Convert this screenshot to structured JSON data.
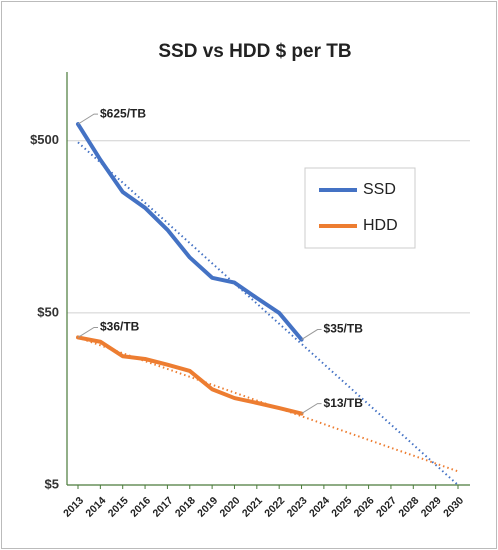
{
  "chart_data": {
    "type": "line",
    "title": "SSD vs HDD $ per TB",
    "categories": [
      "2013",
      "2014",
      "2015",
      "2016",
      "2017",
      "2018",
      "2019",
      "2020",
      "2021",
      "2022",
      "2023",
      "2024",
      "2025",
      "2026",
      "2027",
      "2028",
      "2029",
      "2030"
    ],
    "log_scale": true,
    "grid": true,
    "legend": "upper right",
    "ylim": [
      5,
      1000
    ],
    "yticks": [
      {
        "value": 5,
        "label": "$5"
      },
      {
        "value": 50,
        "label": "$50"
      },
      {
        "value": 500,
        "label": "$500"
      }
    ],
    "series": [
      {
        "name": "SSD",
        "color": "#4472c4",
        "values": [
          625,
          388,
          252,
          204,
          152,
          105,
          80,
          75,
          61,
          50,
          35,
          null,
          null,
          null,
          null,
          null,
          null,
          null
        ],
        "value_labels": [
          "$625/TB",
          null,
          null,
          null,
          null,
          null,
          null,
          null,
          null,
          null,
          "$35/TB",
          null,
          null,
          null,
          null,
          null,
          null,
          null
        ],
        "trend": [
          490,
          5
        ]
      },
      {
        "name": "HDD",
        "color": "#ed7d31",
        "values": [
          36,
          34,
          28,
          27,
          25,
          23,
          18,
          16,
          15,
          14,
          13,
          null,
          null,
          null,
          null,
          null,
          null,
          null
        ],
        "value_labels": [
          "$36/TB",
          null,
          null,
          null,
          null,
          null,
          null,
          null,
          null,
          null,
          "$13/TB",
          null,
          null,
          null,
          null,
          null,
          null,
          null
        ],
        "trend": [
          36,
          6
        ]
      }
    ]
  }
}
